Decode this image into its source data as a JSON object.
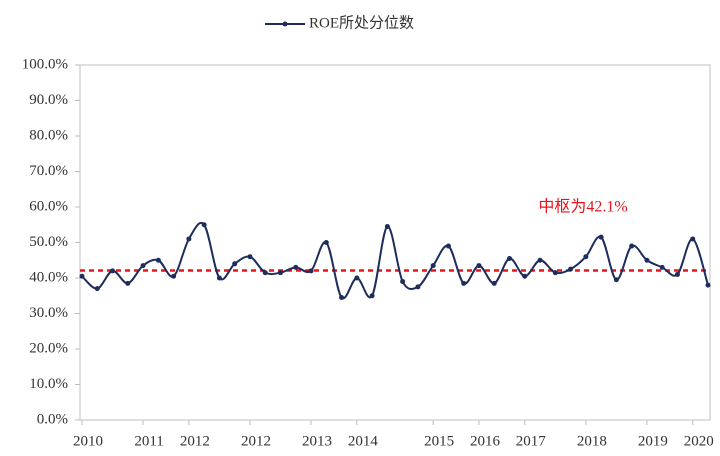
{
  "chart_data": {
    "type": "line",
    "categories": [
      "2010",
      null,
      null,
      null,
      "2011",
      null,
      null,
      "2012",
      null,
      null,
      null,
      "2012",
      null,
      null,
      null,
      "2013",
      null,
      null,
      "2014",
      null,
      null,
      null,
      null,
      "2015",
      null,
      null,
      "2016",
      null,
      null,
      "2017",
      null,
      null,
      null,
      "2018",
      null,
      null,
      null,
      "2019",
      null,
      null,
      "2020",
      null
    ],
    "series": [
      {
        "name": "ROE所处分位数",
        "color": "#1f2d5c",
        "values": [
          40.5,
          37,
          42,
          38.5,
          43.5,
          45,
          40.5,
          51,
          55,
          40,
          44,
          46,
          41.5,
          41.5,
          43,
          42,
          50,
          34.5,
          40,
          35,
          54.5,
          39,
          37.5,
          43.5,
          49,
          38.5,
          43.5,
          38.5,
          45.5,
          40.5,
          45,
          41.5,
          42.5,
          46,
          51.5,
          39.5,
          49,
          45,
          43,
          41,
          51,
          38
        ]
      }
    ],
    "ylim": [
      0,
      100
    ],
    "yticks": [
      {
        "value": 0,
        "label": "0.0%"
      },
      {
        "value": 10,
        "label": "10.0%"
      },
      {
        "value": 20,
        "label": "20.0%"
      },
      {
        "value": 30,
        "label": "30.0%"
      },
      {
        "value": 40,
        "label": "40.0%"
      },
      {
        "value": 50,
        "label": "50.0%"
      },
      {
        "value": 60,
        "label": "60.0%"
      },
      {
        "value": 70,
        "label": "70.0%"
      },
      {
        "value": 80,
        "label": "80.0%"
      },
      {
        "value": 90,
        "label": "90.0%"
      },
      {
        "value": 100,
        "label": "100.0%"
      }
    ],
    "median_line": {
      "value": 42.1,
      "label": "中枢为42.1%",
      "color": "#e8141b"
    },
    "legend": "top"
  }
}
